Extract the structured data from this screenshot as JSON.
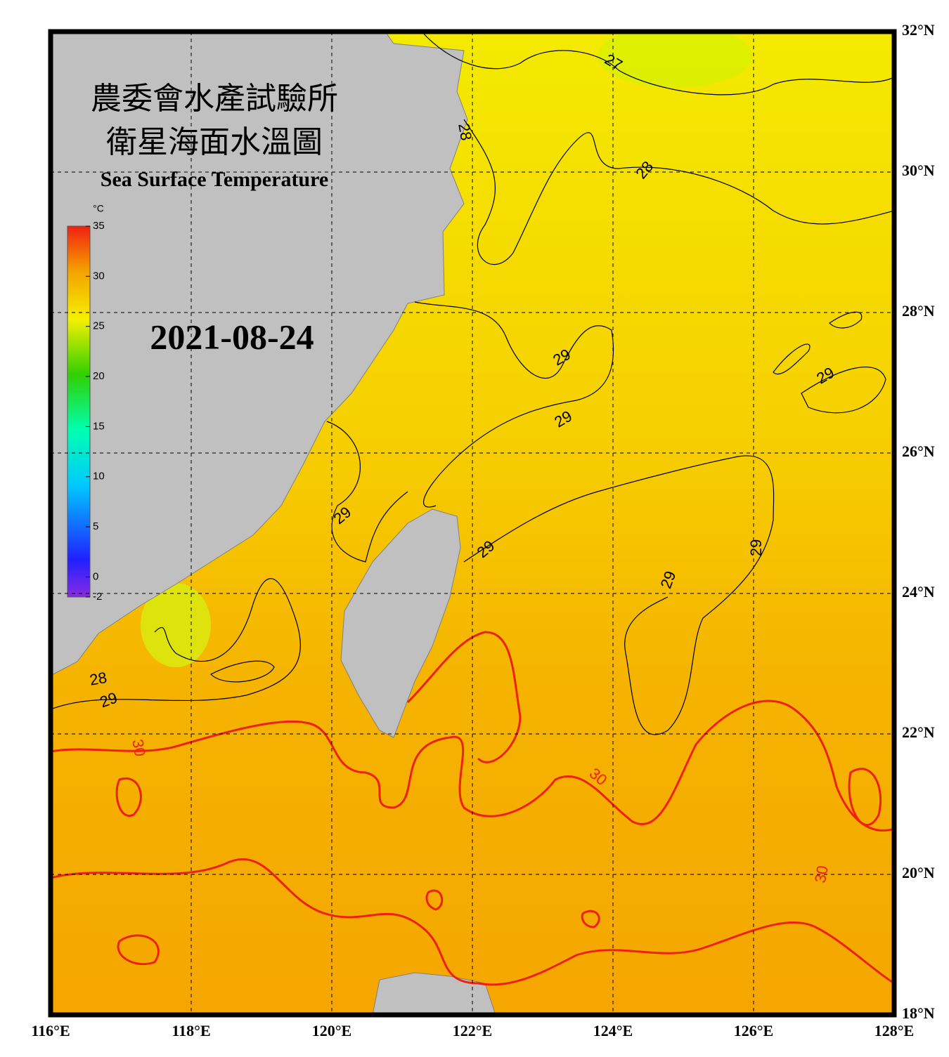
{
  "header": {
    "title_zh_1": "農委會水產試驗所",
    "title_zh_2": "衛星海面水溫圖",
    "title_en": "Sea Surface Temperature",
    "date": "2021-08-24"
  },
  "colorbar": {
    "unit": "°C",
    "range": [
      -2,
      35
    ],
    "ticks": [
      35,
      30,
      25,
      20,
      15,
      10,
      5,
      0,
      -2
    ]
  },
  "map": {
    "xlim": [
      116,
      128
    ],
    "ylim": [
      18,
      32
    ],
    "xticks": [
      {
        "value": 116,
        "label": "116°E"
      },
      {
        "value": 118,
        "label": "118°E"
      },
      {
        "value": 120,
        "label": "120°E"
      },
      {
        "value": 122,
        "label": "122°E"
      },
      {
        "value": 124,
        "label": "124°E"
      },
      {
        "value": 126,
        "label": "126°E"
      },
      {
        "value": 128,
        "label": "128°E"
      }
    ],
    "yticks": [
      {
        "value": 32,
        "label": "32°N"
      },
      {
        "value": 30,
        "label": "30°N"
      },
      {
        "value": 28,
        "label": "28°N"
      },
      {
        "value": 26,
        "label": "26°N"
      },
      {
        "value": 24,
        "label": "24°N"
      },
      {
        "value": 22,
        "label": "22°N"
      },
      {
        "value": 20,
        "label": "20°N"
      },
      {
        "value": 18,
        "label": "18°N"
      }
    ],
    "contour_labels": [
      27,
      28,
      28,
      28,
      29,
      29,
      29,
      29,
      29,
      29,
      29,
      29,
      30,
      30,
      30
    ]
  }
}
